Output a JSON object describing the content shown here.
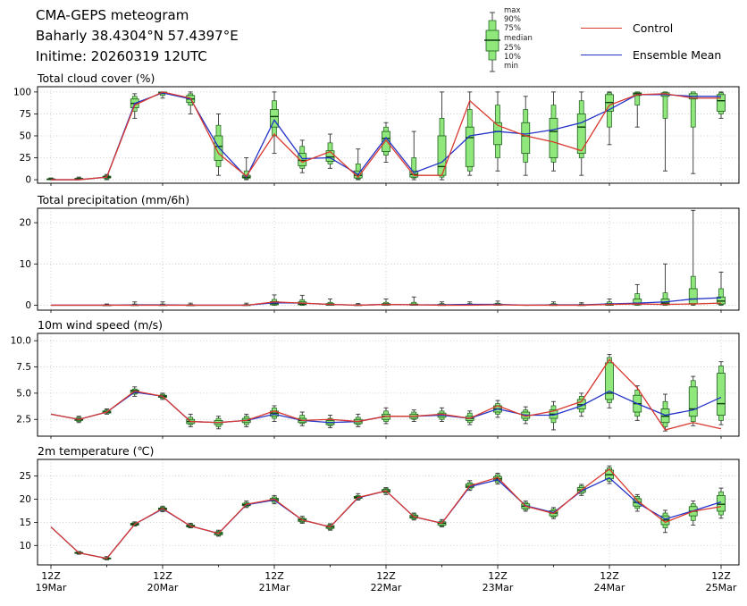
{
  "header": {
    "title": "CMA-GEPS meteogram",
    "location": "Baharly 38.4304°N 57.4397°E",
    "inittime": "Initime: 20260319 12UTC"
  },
  "legend": {
    "box_labels": [
      "max",
      "90%",
      "75%",
      "median",
      "25%",
      "10%",
      "min"
    ],
    "entries": [
      {
        "label": "Control"
      },
      {
        "label": "Ensemble Mean"
      }
    ]
  },
  "colors": {
    "control": "#d8382e",
    "ensemble_mean": "#2433c8",
    "box_fill": "#90e87c",
    "box_edge": "#1c5c1c",
    "median": "#0b3d0b",
    "grid": "#c4c4c4"
  },
  "x_axis": {
    "n_points": 25,
    "step_hours": 6,
    "tick_labels": [
      {
        "top": "12Z",
        "bottom": "19Mar"
      },
      {
        "top": "12Z",
        "bottom": "20Mar"
      },
      {
        "top": "12Z",
        "bottom": "21Mar"
      },
      {
        "top": "12Z",
        "bottom": "22Mar"
      },
      {
        "top": "12Z",
        "bottom": "23Mar"
      },
      {
        "top": "12Z",
        "bottom": "24Mar"
      },
      {
        "top": "12Z",
        "bottom": "25Mar"
      }
    ]
  },
  "chart_data": {
    "type": "meteogram-boxplot",
    "box_quantiles": [
      "min",
      "10%",
      "25%",
      "median",
      "75%",
      "90%",
      "max"
    ],
    "panels": [
      {
        "id": "total-cloud-cover",
        "title": "Total cloud cover (%)",
        "ylim": [
          -4,
          106
        ],
        "yticks": [
          0,
          25,
          50,
          75,
          100
        ],
        "ytick_labels": [
          "0",
          "25",
          "50",
          "75",
          "100"
        ],
        "control": [
          0,
          0,
          3,
          85,
          100,
          93,
          30,
          4,
          52,
          20,
          32,
          3,
          45,
          5,
          5,
          90,
          62,
          50,
          43,
          33,
          85,
          97,
          98,
          93,
          93
        ],
        "ensemble_mean": [
          0,
          0,
          3,
          87,
          99,
          92,
          37,
          3,
          68,
          24,
          25,
          6,
          48,
          8,
          20,
          50,
          55,
          52,
          57,
          65,
          80,
          97,
          97,
          95,
          95
        ],
        "boxes": [
          [
            0,
            0,
            0,
            0.5,
            1,
            1.5,
            2
          ],
          [
            0,
            0,
            0.5,
            1,
            1.5,
            2,
            3
          ],
          [
            0,
            1,
            2,
            3,
            4,
            5,
            6
          ],
          [
            70,
            78,
            82,
            87,
            92,
            95,
            98
          ],
          [
            93,
            96,
            98,
            99,
            100,
            100,
            100
          ],
          [
            75,
            85,
            88,
            92,
            96,
            98,
            100
          ],
          [
            5,
            15,
            22,
            38,
            50,
            62,
            75
          ],
          [
            0,
            1,
            2,
            3,
            5,
            10,
            25
          ],
          [
            30,
            50,
            60,
            72,
            80,
            90,
            100
          ],
          [
            8,
            13,
            16,
            22,
            30,
            38,
            45
          ],
          [
            13,
            18,
            21,
            26,
            33,
            42,
            52
          ],
          [
            0,
            1,
            2,
            5,
            10,
            18,
            35
          ],
          [
            20,
            28,
            32,
            47,
            55,
            60,
            65
          ],
          [
            0,
            2,
            3,
            6,
            10,
            25,
            55
          ],
          [
            0,
            3,
            5,
            15,
            50,
            70,
            100
          ],
          [
            5,
            10,
            15,
            48,
            60,
            80,
            100
          ],
          [
            10,
            25,
            40,
            55,
            65,
            85,
            100
          ],
          [
            5,
            20,
            30,
            50,
            65,
            80,
            95
          ],
          [
            10,
            20,
            25,
            55,
            70,
            85,
            100
          ],
          [
            5,
            25,
            30,
            60,
            75,
            90,
            100
          ],
          [
            40,
            60,
            78,
            88,
            97,
            99,
            100
          ],
          [
            60,
            85,
            96,
            98,
            99,
            100,
            100
          ],
          [
            10,
            70,
            95,
            97,
            99,
            100,
            100
          ],
          [
            7,
            60,
            92,
            95,
            98,
            100,
            100
          ],
          [
            70,
            75,
            78,
            90,
            97,
            99,
            100
          ]
        ]
      },
      {
        "id": "total-precipitation",
        "title": "Total precipitation (mm/6h)",
        "ylim": [
          -1.2,
          23.5
        ],
        "yticks": [
          0,
          10,
          20
        ],
        "ytick_labels": [
          "0",
          "10",
          "20"
        ],
        "control": [
          0,
          0,
          0,
          0,
          0,
          0,
          0,
          0,
          0.8,
          0.5,
          0.2,
          0,
          0.2,
          0.1,
          0,
          0,
          0.1,
          0,
          0,
          0,
          0.2,
          0.3,
          0.2,
          0.3,
          0.5
        ],
        "ensemble_mean": [
          0,
          0,
          0,
          0.1,
          0.1,
          0,
          0,
          0,
          0.6,
          0.5,
          0.2,
          0,
          0.2,
          0.1,
          0.1,
          0.2,
          0.2,
          0,
          0.1,
          0.1,
          0.3,
          0.5,
          0.8,
          1.5,
          1.8
        ],
        "boxes": [
          null,
          null,
          [
            0,
            0,
            0,
            0,
            0.05,
            0.1,
            0.3
          ],
          [
            0,
            0,
            0,
            0,
            0.1,
            0.3,
            0.8
          ],
          [
            0,
            0,
            0,
            0,
            0.1,
            0.3,
            0.8
          ],
          [
            0,
            0,
            0,
            0,
            0.05,
            0.2,
            0.5
          ],
          null,
          [
            0,
            0,
            0,
            0,
            0.1,
            0.2,
            0.5
          ],
          [
            0,
            0,
            0.1,
            0.4,
            0.9,
            1.4,
            2.5
          ],
          [
            0,
            0,
            0.1,
            0.3,
            0.8,
            1.3,
            2.4
          ],
          [
            0,
            0,
            0,
            0.1,
            0.4,
            0.7,
            1.5
          ],
          [
            0,
            0,
            0,
            0,
            0.1,
            0.2,
            0.4
          ],
          [
            0,
            0,
            0,
            0.1,
            0.4,
            0.7,
            1.5
          ],
          [
            0,
            0,
            0,
            0.1,
            0.3,
            0.7,
            2.0
          ],
          [
            0,
            0,
            0,
            0,
            0.2,
            0.4,
            0.8
          ],
          [
            0,
            0,
            0,
            0.1,
            0.2,
            0.4,
            0.8
          ],
          [
            0,
            0,
            0,
            0.1,
            0.3,
            0.5,
            1.0
          ],
          null,
          [
            0,
            0,
            0,
            0,
            0.2,
            0.4,
            0.8
          ],
          [
            0,
            0,
            0,
            0,
            0.1,
            0.3,
            0.6
          ],
          [
            0,
            0,
            0,
            0.1,
            0.4,
            0.8,
            1.5
          ],
          [
            0,
            0,
            0.1,
            0.5,
            1.5,
            2.8,
            5.0
          ],
          [
            0,
            0,
            0.1,
            0.5,
            1.5,
            3.0,
            10.0
          ],
          [
            0,
            0.1,
            0.4,
            1.5,
            4.0,
            7.0,
            23.0
          ],
          [
            0,
            0.1,
            0.3,
            1.0,
            2.0,
            4.0,
            8.0
          ]
        ]
      },
      {
        "id": "wind-speed-10m",
        "title": "10m wind speed (m/s)",
        "ylim": [
          0.9,
          10.7
        ],
        "yticks": [
          2.5,
          5.0,
          7.5,
          10.0
        ],
        "ytick_labels": [
          "2.5",
          "5.0",
          "7.5",
          "10.0"
        ],
        "control": [
          3.0,
          2.5,
          3.2,
          5.2,
          4.7,
          2.3,
          2.2,
          2.4,
          3.3,
          2.4,
          2.5,
          2.3,
          2.8,
          2.8,
          3.0,
          2.6,
          3.8,
          2.8,
          3.3,
          4.2,
          8.2,
          5.5,
          1.5,
          2.2,
          1.6
        ],
        "ensemble_mean": [
          3.0,
          2.5,
          3.2,
          5.1,
          4.7,
          2.3,
          2.2,
          2.4,
          3.0,
          2.4,
          2.2,
          2.3,
          2.8,
          2.8,
          2.9,
          2.6,
          3.5,
          2.9,
          2.9,
          3.8,
          5.2,
          4.0,
          2.9,
          3.4,
          4.6
        ],
        "boxes": [
          null,
          [
            2.2,
            2.3,
            2.4,
            2.5,
            2.6,
            2.7,
            2.8
          ],
          [
            3.0,
            3.1,
            3.1,
            3.2,
            3.3,
            3.4,
            3.5
          ],
          [
            4.7,
            4.9,
            5.0,
            5.2,
            5.3,
            5.4,
            5.6
          ],
          [
            4.4,
            4.5,
            4.6,
            4.7,
            4.8,
            4.9,
            5.0
          ],
          [
            1.8,
            2.0,
            2.1,
            2.3,
            2.5,
            2.7,
            3.0
          ],
          [
            1.6,
            1.8,
            2.0,
            2.2,
            2.4,
            2.6,
            2.8
          ],
          [
            1.8,
            2.0,
            2.2,
            2.4,
            2.6,
            2.8,
            3.0
          ],
          [
            2.3,
            2.6,
            2.8,
            3.1,
            3.3,
            3.6,
            3.8
          ],
          [
            1.9,
            2.1,
            2.2,
            2.4,
            2.6,
            2.9,
            3.2
          ],
          [
            1.7,
            1.9,
            2.0,
            2.2,
            2.4,
            2.6,
            2.9
          ],
          [
            1.8,
            2.0,
            2.1,
            2.3,
            2.5,
            2.7,
            3.0
          ],
          [
            2.1,
            2.3,
            2.5,
            2.8,
            3.0,
            3.3,
            3.6
          ],
          [
            2.3,
            2.5,
            2.6,
            2.8,
            3.0,
            3.2,
            3.4
          ],
          [
            2.3,
            2.5,
            2.7,
            2.9,
            3.1,
            3.3,
            3.6
          ],
          [
            2.0,
            2.2,
            2.4,
            2.6,
            2.8,
            3.1,
            3.3
          ],
          [
            2.7,
            3.0,
            3.2,
            3.5,
            3.8,
            4.0,
            4.3
          ],
          [
            2.1,
            2.4,
            2.6,
            2.9,
            3.2,
            3.4,
            3.7
          ],
          [
            1.5,
            2.2,
            2.6,
            3.0,
            3.4,
            3.8,
            4.2
          ],
          [
            2.8,
            3.2,
            3.5,
            3.9,
            4.4,
            4.7,
            5.0
          ],
          [
            3.6,
            4.1,
            4.4,
            5.0,
            7.9,
            8.4,
            8.7
          ],
          [
            2.4,
            2.8,
            3.2,
            4.0,
            4.8,
            5.3,
            5.7
          ],
          [
            1.4,
            1.8,
            2.2,
            2.8,
            3.5,
            4.2,
            4.9
          ],
          [
            1.9,
            2.3,
            2.8,
            3.5,
            5.6,
            6.2,
            6.6
          ],
          [
            2.0,
            2.4,
            2.9,
            4.0,
            6.9,
            7.6,
            8.0
          ]
        ]
      },
      {
        "id": "temperature-2m",
        "title": "2m temperature (℃)",
        "ylim": [
          5.8,
          28.6
        ],
        "yticks": [
          10,
          15,
          20,
          25
        ],
        "ytick_labels": [
          "10",
          "15",
          "20",
          "25"
        ],
        "control": [
          14.0,
          8.4,
          7.2,
          14.6,
          18.0,
          14.2,
          12.6,
          18.9,
          20.0,
          15.5,
          14.0,
          20.4,
          21.8,
          16.2,
          14.8,
          22.9,
          24.7,
          18.5,
          16.9,
          22.0,
          26.5,
          19.7,
          15.0,
          17.4,
          18.4
        ],
        "ensemble_mean": [
          14.0,
          8.4,
          7.2,
          14.6,
          17.9,
          14.2,
          12.6,
          18.8,
          19.8,
          15.5,
          14.0,
          20.3,
          21.8,
          16.2,
          14.8,
          22.7,
          24.2,
          18.6,
          17.1,
          21.8,
          24.6,
          19.2,
          15.7,
          17.5,
          19.4
        ],
        "boxes": [
          null,
          [
            8.1,
            8.2,
            8.3,
            8.4,
            8.5,
            8.6,
            8.7
          ],
          [
            6.9,
            7.0,
            7.1,
            7.2,
            7.3,
            7.4,
            7.6
          ],
          [
            14.2,
            14.3,
            14.4,
            14.6,
            14.8,
            14.9,
            15.1
          ],
          [
            17.3,
            17.5,
            17.7,
            17.9,
            18.1,
            18.3,
            18.5
          ],
          [
            13.8,
            13.9,
            14.0,
            14.2,
            14.4,
            14.6,
            14.8
          ],
          [
            12.0,
            12.2,
            12.3,
            12.6,
            12.9,
            13.1,
            13.3
          ],
          [
            18.2,
            18.4,
            18.6,
            18.8,
            19.1,
            19.3,
            19.6
          ],
          [
            19.0,
            19.3,
            19.6,
            19.9,
            20.2,
            20.5,
            20.8
          ],
          [
            14.8,
            15.0,
            15.2,
            15.5,
            15.8,
            16.0,
            16.3
          ],
          [
            13.3,
            13.5,
            13.7,
            14.0,
            14.3,
            14.5,
            14.7
          ],
          [
            19.8,
            20.0,
            20.2,
            20.4,
            20.6,
            20.8,
            21.2
          ],
          [
            21.0,
            21.3,
            21.5,
            21.8,
            22.1,
            22.3,
            22.5
          ],
          [
            15.5,
            15.7,
            15.9,
            16.2,
            16.5,
            16.8,
            17.0
          ],
          [
            14.0,
            14.2,
            14.4,
            14.8,
            15.1,
            15.3,
            15.6
          ],
          [
            21.9,
            22.2,
            22.5,
            22.8,
            23.3,
            23.6,
            24.0
          ],
          [
            23.3,
            23.6,
            24.0,
            24.4,
            24.9,
            25.3,
            25.6
          ],
          [
            17.4,
            17.7,
            18.0,
            18.5,
            19.0,
            19.3,
            19.6
          ],
          [
            15.8,
            16.1,
            16.4,
            17.0,
            17.5,
            17.9,
            18.2
          ],
          [
            20.8,
            21.2,
            21.5,
            22.0,
            22.5,
            22.9,
            23.2
          ],
          [
            23.4,
            23.9,
            24.4,
            25.3,
            26.3,
            26.8,
            27.2
          ],
          [
            17.4,
            18.0,
            18.5,
            19.3,
            20.1,
            20.6,
            21.0
          ],
          [
            12.8,
            13.8,
            14.5,
            15.5,
            16.4,
            17.0,
            17.6
          ],
          [
            14.4,
            15.4,
            16.4,
            17.4,
            18.4,
            19.0,
            19.6
          ],
          [
            15.9,
            16.6,
            17.4,
            18.9,
            20.8,
            21.6,
            22.4
          ]
        ]
      }
    ]
  }
}
